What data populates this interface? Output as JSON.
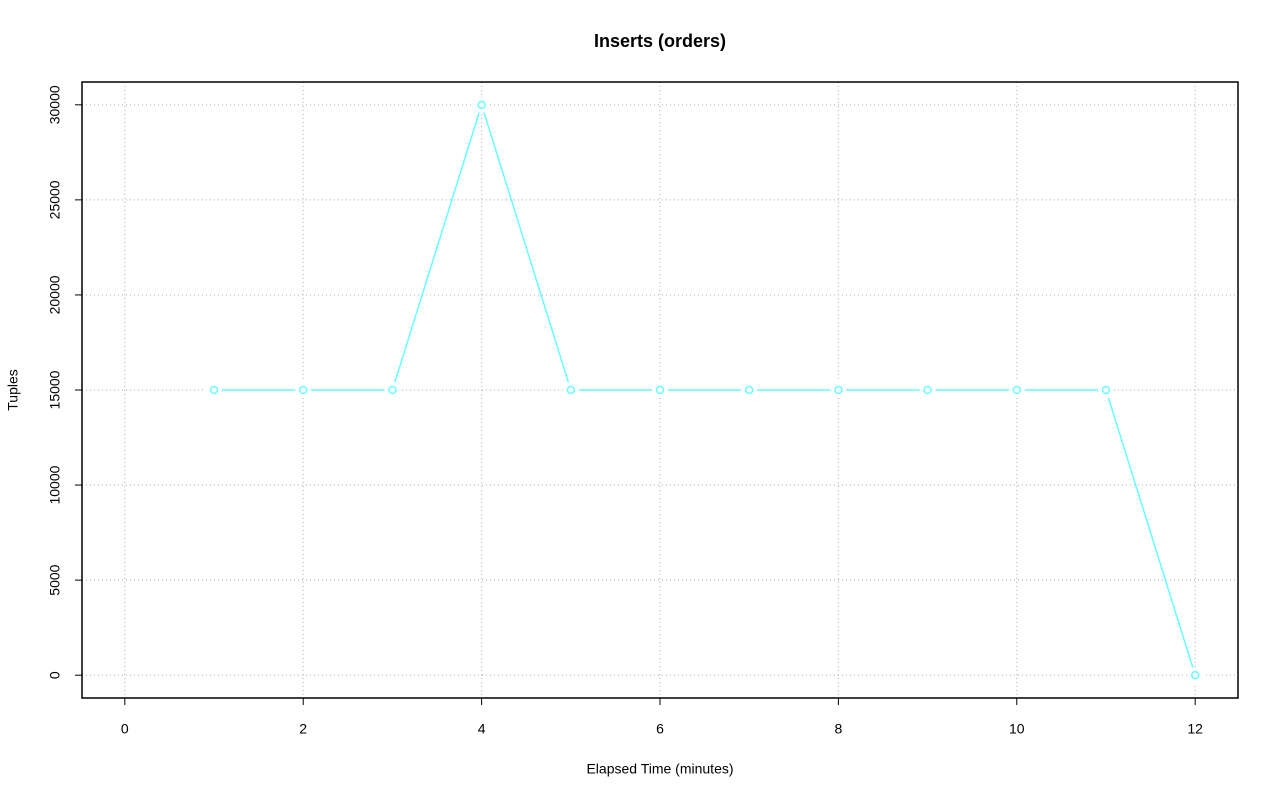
{
  "chart_data": {
    "type": "line",
    "title": "Inserts (orders)",
    "x_label": "Elapsed Time (minutes)",
    "y_label": "Tuples",
    "x": [
      1,
      2,
      3,
      4,
      5,
      6,
      7,
      8,
      9,
      10,
      11,
      12
    ],
    "series": [
      {
        "name": "orders",
        "color": "#66ffff",
        "values": [
          15000,
          15000,
          15000,
          30000,
          15000,
          15000,
          15000,
          15000,
          15000,
          15000,
          15000,
          0
        ]
      }
    ],
    "xlim": [
      -0.48,
      12.48
    ],
    "xticks": [
      0,
      2,
      4,
      6,
      8,
      10,
      12
    ],
    "ylim": [
      -1200,
      31200
    ],
    "yticks": [
      0,
      5000,
      10000,
      15000,
      20000,
      25000,
      30000
    ],
    "grid": true
  }
}
